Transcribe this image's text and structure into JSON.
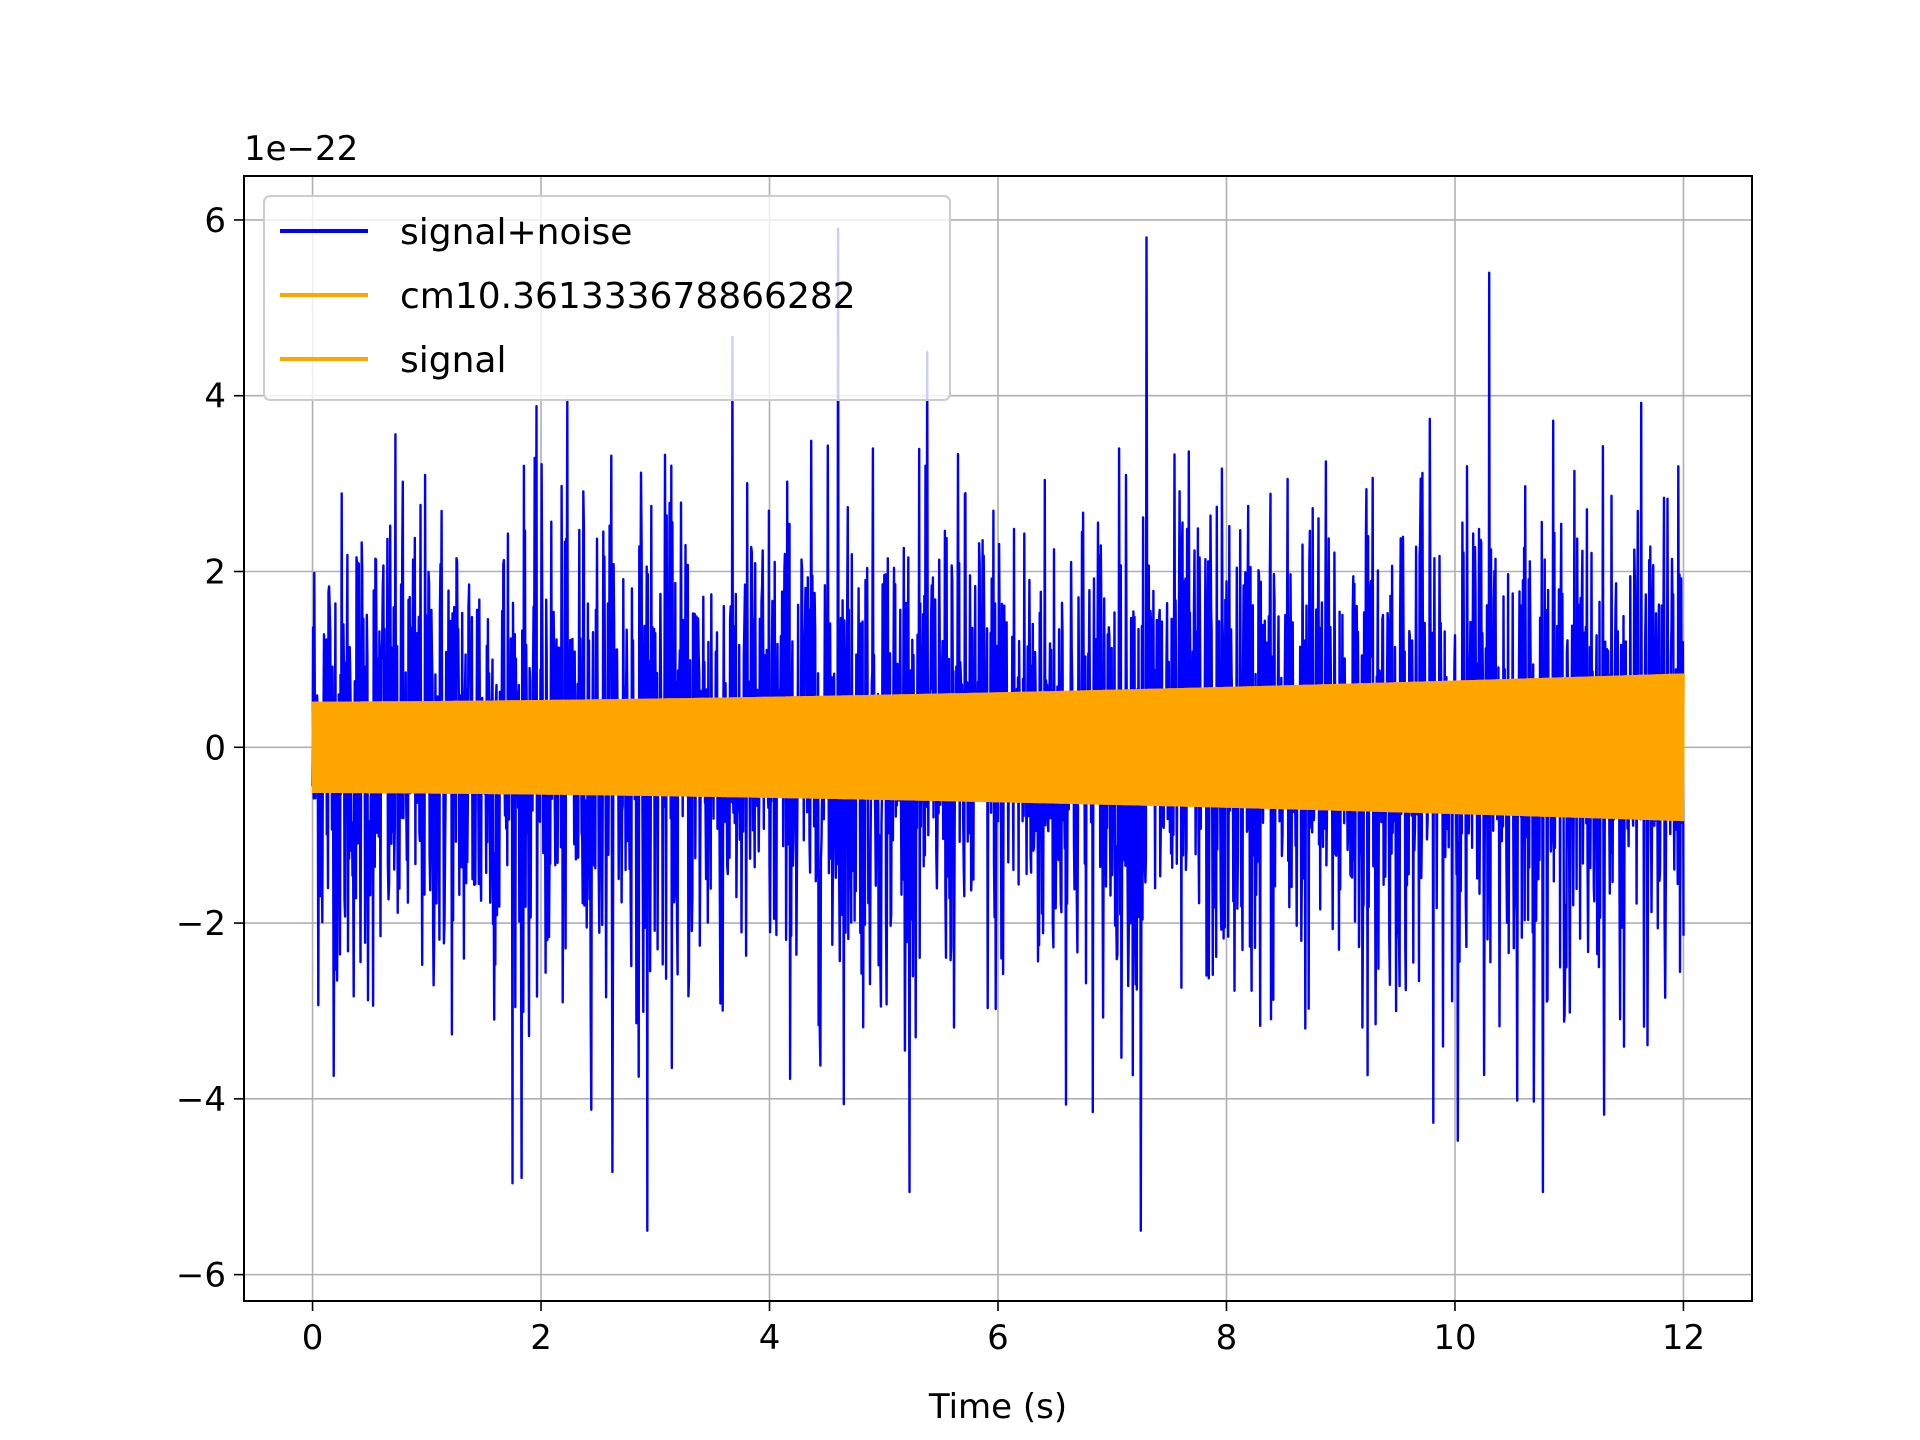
{
  "chart_data": {
    "type": "line",
    "xlabel": "Time (s)",
    "ylabel": "",
    "y_scale_label": "1e−22",
    "xlim": [
      -0.6,
      12.6
    ],
    "ylim": [
      -6.3,
      6.5
    ],
    "x_ticks": [
      0,
      2,
      4,
      6,
      8,
      10,
      12
    ],
    "x_tick_labels": [
      "0",
      "2",
      "4",
      "6",
      "8",
      "10",
      "12"
    ],
    "y_ticks": [
      -6,
      -4,
      -2,
      0,
      2,
      4,
      6
    ],
    "y_tick_labels": [
      "−6",
      "−4",
      "−2",
      "0",
      "2",
      "4",
      "6"
    ],
    "grid": true,
    "legend_position": "top-left",
    "x_start": 0,
    "x_end": 12,
    "series": [
      {
        "name": "signal+noise",
        "color": "#0000ff",
        "typical_amplitude": 1.5,
        "peak_max": 5.9,
        "peak_min": -5.5
      },
      {
        "name": "cm10.361333678866282",
        "color": "#ffa500",
        "envelope_start": 0.52,
        "envelope_end": 0.84
      },
      {
        "name": "signal",
        "color": "#ffa500",
        "envelope_start": 0.52,
        "envelope_end": 0.84
      }
    ]
  }
}
